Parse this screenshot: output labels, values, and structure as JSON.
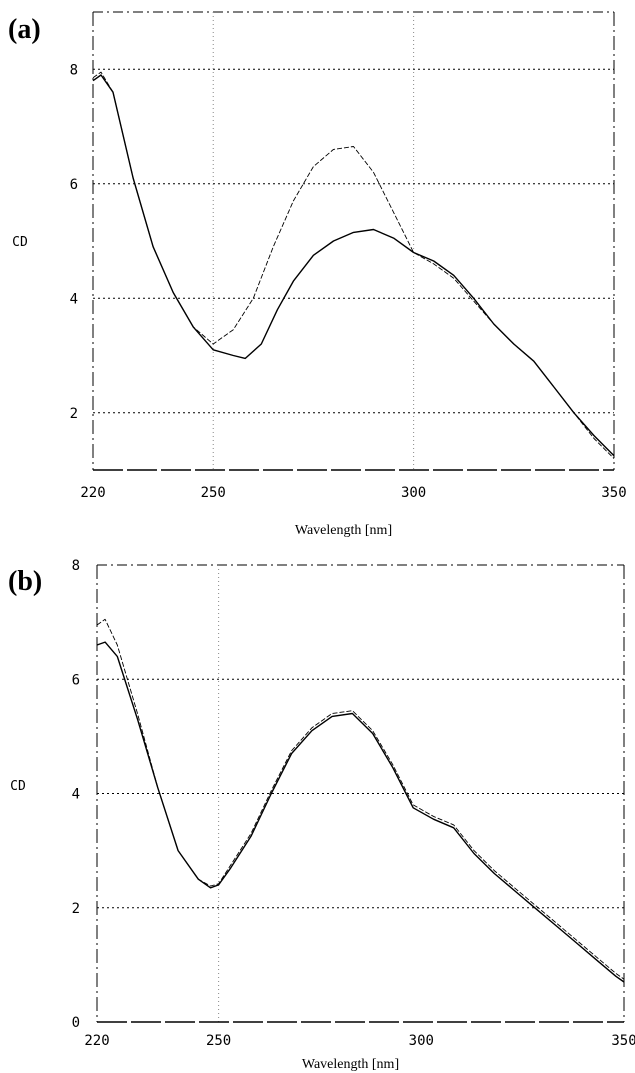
{
  "chart_data": [
    {
      "panel": "(a)",
      "type": "line",
      "xlabel": "Wavelength [nm]",
      "ylabel": "CD",
      "xlim": [
        220,
        350
      ],
      "ylim": [
        1,
        9
      ],
      "x_ticks": [
        "220",
        "250",
        "300",
        "350"
      ],
      "y_ticks": [
        "2",
        "4",
        "6",
        "8"
      ],
      "grid": "dotted horizontal lines at 2, 4, 6, 8; dotted vertical lines at 250 and 300",
      "series": [
        {
          "style": "solid",
          "x": [
            220,
            222,
            225,
            230,
            235,
            240,
            245,
            250,
            255,
            258,
            262,
            266,
            270,
            275,
            280,
            285,
            290,
            295,
            300,
            305,
            310,
            315,
            320,
            325,
            330,
            335,
            340,
            345,
            350
          ],
          "y": [
            7.8,
            7.9,
            7.6,
            6.1,
            4.9,
            4.1,
            3.5,
            3.1,
            3.0,
            2.95,
            3.2,
            3.8,
            4.3,
            4.75,
            5.0,
            5.15,
            5.2,
            5.05,
            4.8,
            4.65,
            4.4,
            4.0,
            3.55,
            3.2,
            2.9,
            2.45,
            2.0,
            1.6,
            1.25
          ]
        },
        {
          "style": "dashed",
          "x": [
            220,
            222,
            225,
            230,
            235,
            240,
            245,
            250,
            255,
            260,
            265,
            270,
            275,
            280,
            285,
            290,
            295,
            300,
            305,
            310,
            315,
            320,
            325,
            330,
            335,
            340,
            345,
            350
          ],
          "y": [
            7.85,
            7.95,
            7.6,
            6.1,
            4.9,
            4.1,
            3.5,
            3.2,
            3.45,
            4.0,
            4.9,
            5.7,
            6.3,
            6.6,
            6.65,
            6.2,
            5.5,
            4.8,
            4.6,
            4.35,
            3.95,
            3.55,
            3.2,
            2.9,
            2.45,
            2.0,
            1.55,
            1.2
          ]
        }
      ]
    },
    {
      "panel": "(b)",
      "type": "line",
      "xlabel": "Wavelength [nm]",
      "ylabel": "CD",
      "xlim": [
        220,
        350
      ],
      "ylim": [
        0,
        8
      ],
      "x_ticks": [
        "220",
        "250",
        "300",
        "350"
      ],
      "y_ticks": [
        "0",
        "2",
        "4",
        "6",
        "8"
      ],
      "grid": "dotted horizontal lines at 2, 4, 6; dotted vertical line at 250",
      "series": [
        {
          "style": "solid",
          "x": [
            220,
            222,
            225,
            230,
            235,
            240,
            245,
            248,
            250,
            253,
            258,
            263,
            268,
            273,
            278,
            283,
            288,
            293,
            298,
            303,
            308,
            313,
            318,
            323,
            328,
            333,
            338,
            343,
            348,
            350
          ],
          "y": [
            6.6,
            6.65,
            6.4,
            5.3,
            4.1,
            3.0,
            2.5,
            2.35,
            2.4,
            2.7,
            3.25,
            4.0,
            4.7,
            5.1,
            5.35,
            5.4,
            5.05,
            4.45,
            3.75,
            3.55,
            3.4,
            2.95,
            2.6,
            2.3,
            2.0,
            1.7,
            1.4,
            1.1,
            0.8,
            0.7
          ]
        },
        {
          "style": "dashed",
          "x": [
            220,
            222,
            225,
            230,
            235,
            240,
            245,
            248,
            250,
            253,
            258,
            263,
            268,
            273,
            278,
            283,
            288,
            293,
            298,
            303,
            308,
            313,
            318,
            323,
            328,
            333,
            338,
            343,
            348,
            350
          ],
          "y": [
            6.95,
            7.05,
            6.6,
            5.4,
            4.1,
            3.0,
            2.5,
            2.38,
            2.42,
            2.75,
            3.3,
            4.05,
            4.75,
            5.15,
            5.4,
            5.45,
            5.1,
            4.5,
            3.8,
            3.6,
            3.45,
            3.0,
            2.65,
            2.35,
            2.05,
            1.75,
            1.45,
            1.15,
            0.85,
            0.75
          ]
        }
      ]
    }
  ]
}
